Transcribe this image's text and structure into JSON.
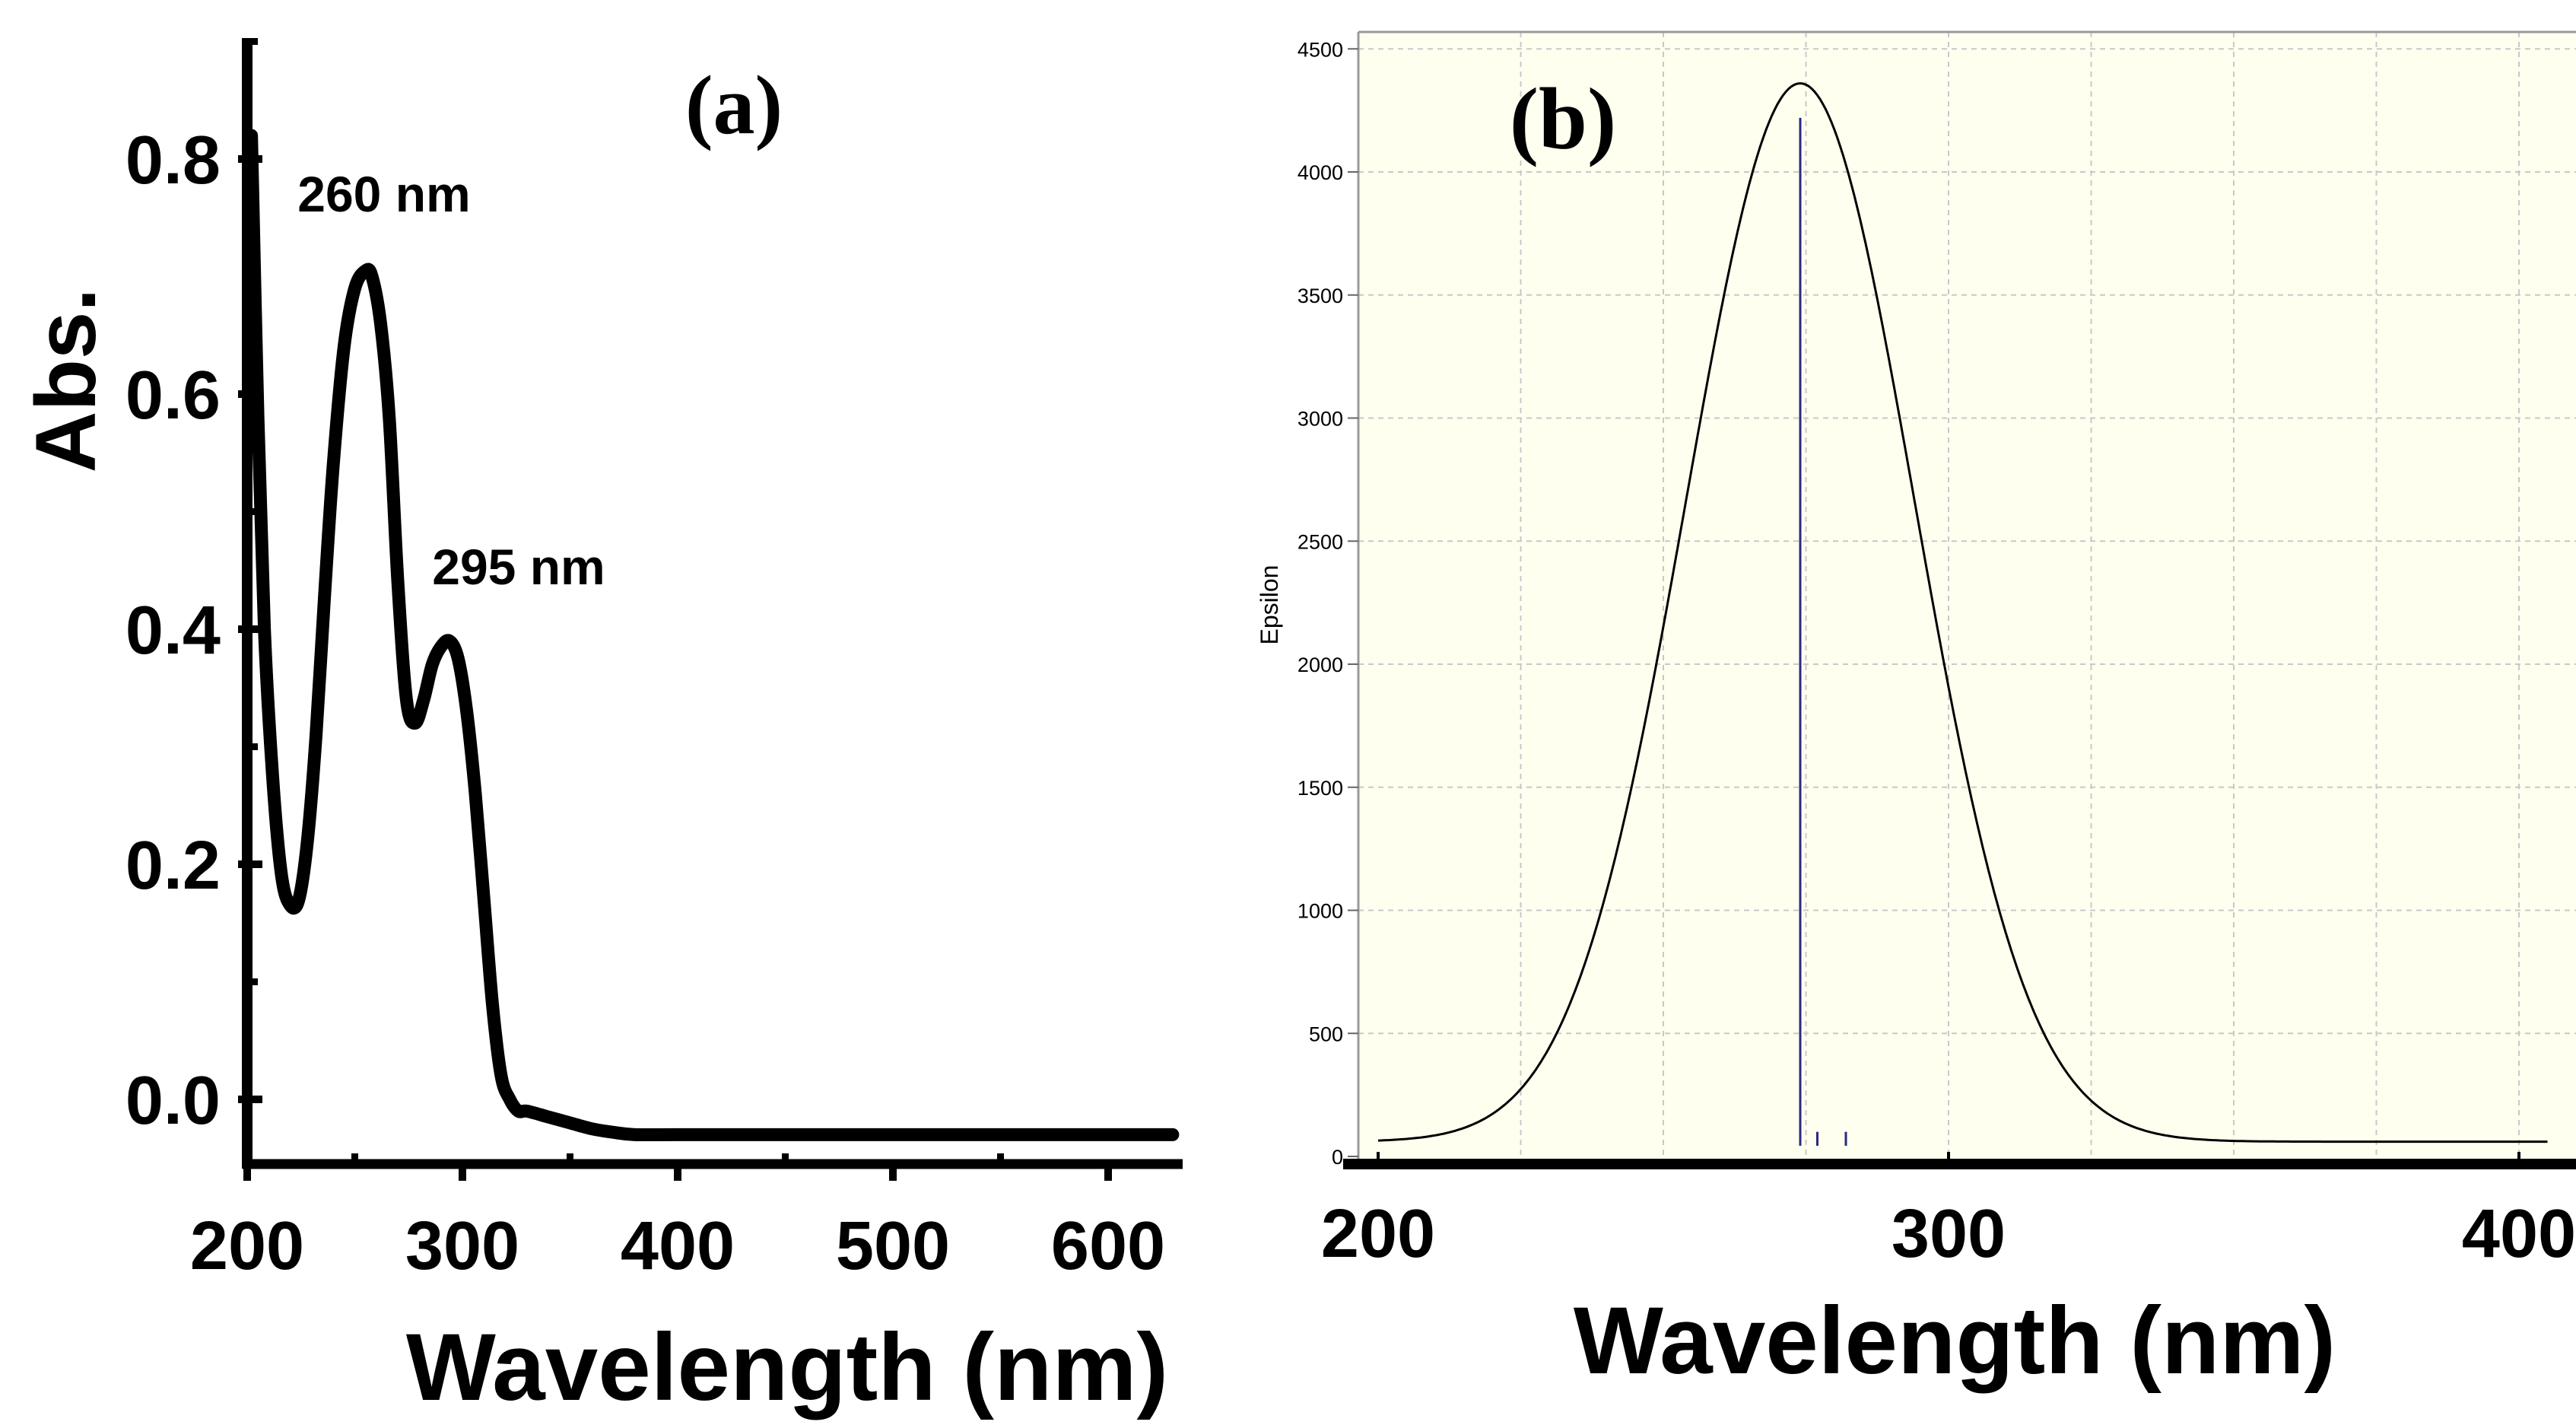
{
  "chart_data": [
    {
      "panel": "a",
      "type": "line",
      "panel_label": "(a)",
      "xlabel": "Wavelength (nm)",
      "ylabel": "Abs.",
      "xlim": [
        200,
        630
      ],
      "ylim": [
        -0.05,
        0.9
      ],
      "xticks": [
        200,
        300,
        400,
        500,
        600
      ],
      "xtick_labels": [
        "200",
        "300",
        "400",
        "500",
        "600"
      ],
      "yticks": [
        0.0,
        0.2,
        0.4,
        0.6,
        0.8
      ],
      "ytick_labels": [
        "0.0",
        "0.2",
        "0.4",
        "0.6",
        "0.8"
      ],
      "grid": false,
      "series": [
        {
          "name": "Abs.",
          "color": "#000000",
          "x": [
            202,
            205,
            208,
            212,
            216,
            220,
            224,
            228,
            232,
            236,
            240,
            245,
            250,
            255,
            258,
            262,
            266,
            270,
            274,
            278,
            282,
            286,
            290,
            294,
            298,
            302,
            306,
            310,
            314,
            318,
            322,
            326,
            330,
            340,
            350,
            360,
            370,
            380,
            400,
            450,
            500,
            550,
            600,
            630
          ],
          "y": [
            0.82,
            0.58,
            0.4,
            0.27,
            0.19,
            0.165,
            0.17,
            0.22,
            0.31,
            0.43,
            0.54,
            0.64,
            0.69,
            0.705,
            0.7,
            0.66,
            0.58,
            0.44,
            0.34,
            0.32,
            0.34,
            0.37,
            0.385,
            0.39,
            0.375,
            0.33,
            0.26,
            0.17,
            0.08,
            0.02,
            0.0,
            -0.01,
            -0.01,
            -0.015,
            -0.02,
            -0.025,
            -0.028,
            -0.03,
            -0.03,
            -0.03,
            -0.03,
            -0.03,
            -0.03,
            -0.03
          ]
        }
      ],
      "annotations": [
        {
          "text": "260 nm",
          "x": 262,
          "y": 0.76
        },
        {
          "text": "295 nm",
          "x": 325,
          "y": 0.44
        }
      ]
    },
    {
      "panel": "b",
      "type": "line",
      "panel_label": "(b)",
      "xlabel": "Wavelength (nm)",
      "ylabel": "Epsilon",
      "xlim": [
        196,
        410
      ],
      "ylim": [
        0,
        4500
      ],
      "xticks": [
        200,
        300,
        400
      ],
      "xtick_labels": [
        "200",
        "300",
        "400"
      ],
      "yticks": [
        0,
        500,
        1000,
        1500,
        2000,
        2500,
        3000,
        3500,
        4000,
        4500
      ],
      "ytick_labels": [
        "0",
        "500",
        "1000",
        "1500",
        "2000",
        "2500",
        "3000",
        "3500",
        "4000",
        "4500"
      ],
      "grid": true,
      "background": "#fffff0",
      "series": [
        {
          "name": "Epsilon",
          "color": "#000000",
          "curve": "gaussian",
          "baseline": 60,
          "peak_x": 274,
          "peak_height": 4300,
          "sigma": 20,
          "x_range": [
            200,
            405
          ]
        }
      ],
      "stick_lines": {
        "color": "#2a2a80",
        "x": [
          274,
          277,
          282
        ],
        "y": [
          4220,
          100,
          100
        ]
      }
    }
  ]
}
